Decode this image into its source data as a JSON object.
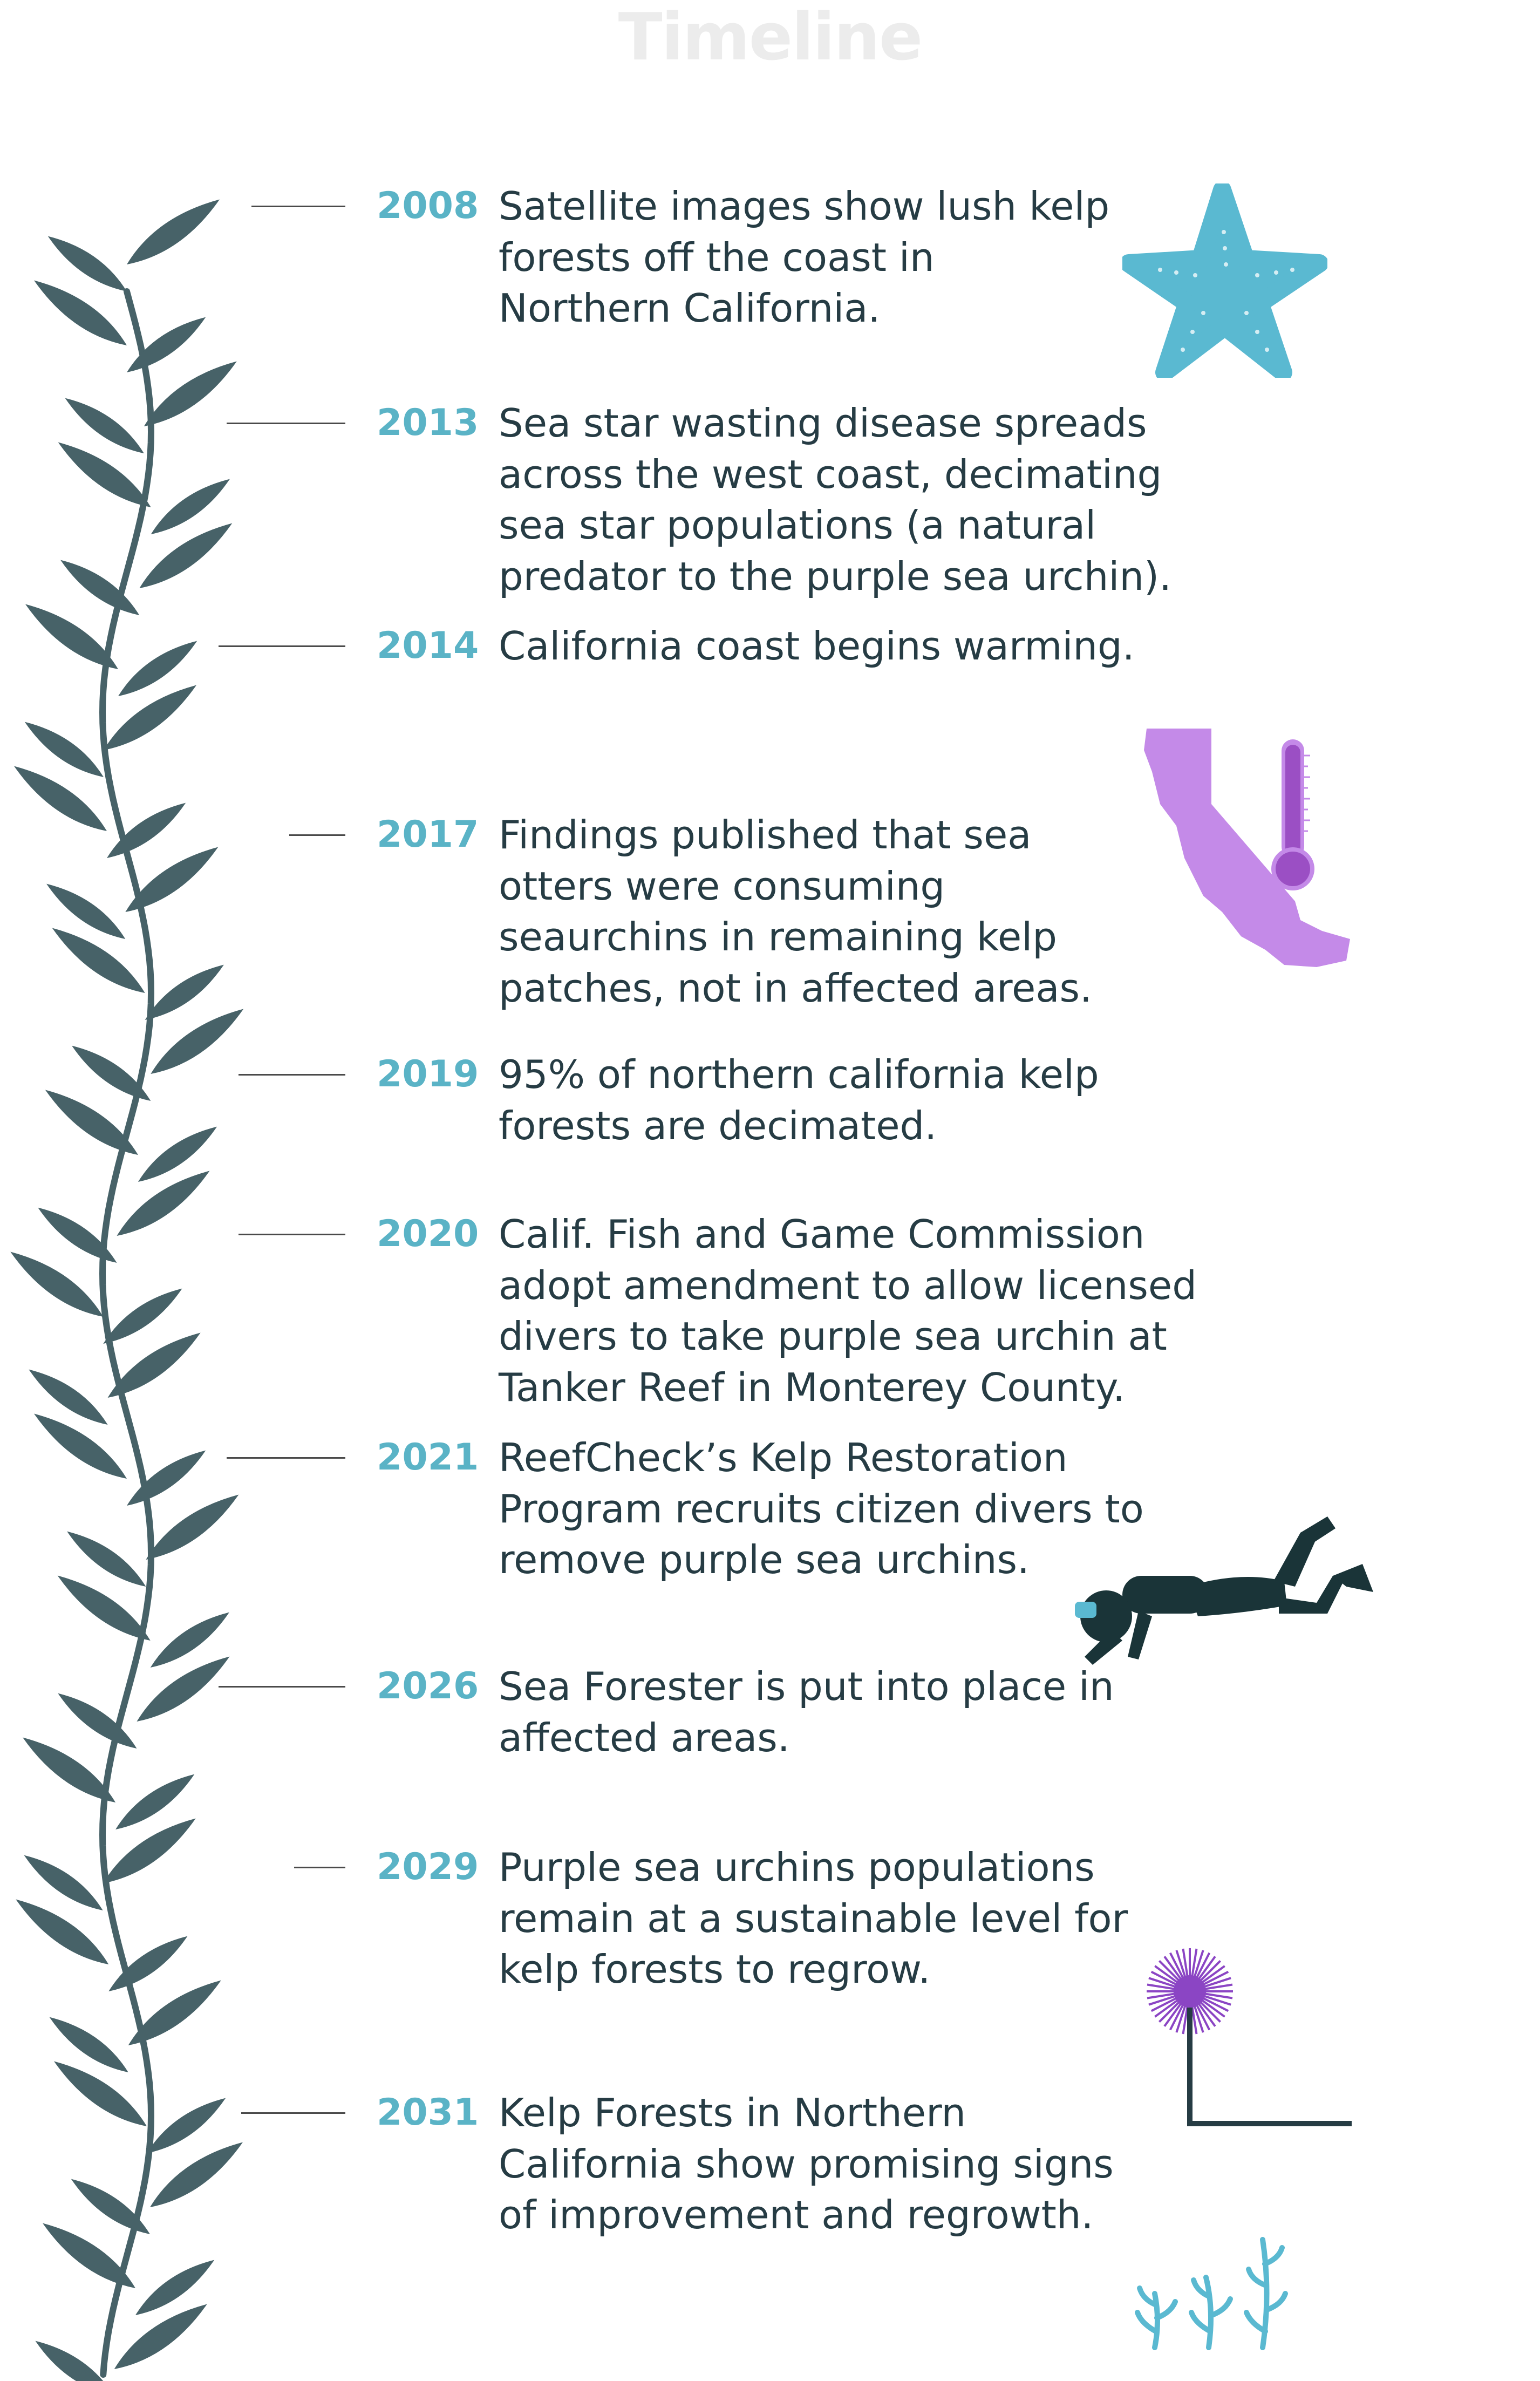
{
  "title": "Timeline",
  "colors": {
    "year": "#5ab3c6",
    "body_text": "#263c44",
    "kelp": "#476268",
    "starfish": "#5ab9d1",
    "california": "#c48ae8",
    "thermometer": "#9b4fc4",
    "diver": "#1a3438",
    "urchin": "#8b45c4",
    "seedlings": "#5ab9d1"
  },
  "icons": [
    "starfish-icon",
    "california-thermometer-icon",
    "scuba-diver-icon",
    "sea-urchin-icon",
    "kelp-seedlings-icon",
    "kelp-vine-illustration"
  ],
  "events": [
    {
      "year": "2008",
      "lines": [
        "Satellite images show lush kelp",
        "forests off the coast in",
        "Northern California."
      ]
    },
    {
      "year": "2013",
      "lines": [
        "Sea star wasting disease spreads",
        "across the west coast, decimating",
        "sea star populations (a natural",
        "predator to the purple sea urchin)."
      ]
    },
    {
      "year": "2014",
      "lines": [
        "California coast begins warming."
      ]
    },
    {
      "year": "2017",
      "lines": [
        "Findings published that sea",
        "otters were consuming",
        "seaurchins in remaining kelp",
        "patches, not in affected areas."
      ]
    },
    {
      "year": "2019",
      "lines": [
        "95% of northern california kelp",
        "forests are decimated."
      ]
    },
    {
      "year": "2020",
      "lines": [
        "Calif. Fish and Game Commission",
        "adopt amendment to allow licensed",
        "divers to take purple sea urchin at",
        "Tanker Reef in Monterey County."
      ]
    },
    {
      "year": "2021",
      "lines": [
        "ReefCheck’s Kelp Restoration",
        "Program recruits citizen divers to",
        "remove purple sea urchins."
      ]
    },
    {
      "year": "2026",
      "lines": [
        "Sea Forester is put into place in",
        "affected areas."
      ]
    },
    {
      "year": "2029",
      "lines": [
        "Purple sea urchins populations",
        "remain at a sustainable level for",
        "kelp forests to regrow."
      ]
    },
    {
      "year": "2031",
      "lines": [
        "Kelp Forests in Northern",
        "California  show promising signs",
        "of improvement and regrowth."
      ]
    }
  ]
}
